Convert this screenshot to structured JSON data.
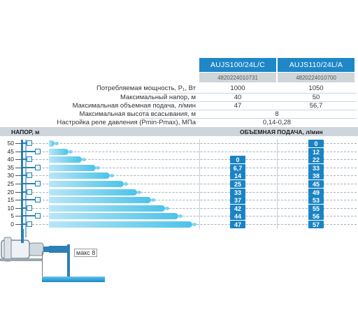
{
  "models": [
    {
      "name": "AUJS100/24L/C",
      "code": "4820224010731"
    },
    {
      "name": "AUJS110/24L/A",
      "code": "4820224010700"
    }
  ],
  "specs": [
    {
      "label": "Потребляемая мощность, P₁, Вт",
      "v1": "1000",
      "v2": "1050"
    },
    {
      "label": "Максимальный напор, м",
      "v1": "40",
      "v2": "50"
    },
    {
      "label": "Максимальная объемная подача, л/мин",
      "v1": "47",
      "v2": "56,7"
    },
    {
      "label": "Максимальная высота всасывания, м",
      "merged": "8"
    },
    {
      "label": "Настройка реле давления (Pmin-Pmax), МПа",
      "merged": "0,14-0,28"
    }
  ],
  "chart_header": {
    "head_label": "НАПОР,  м",
    "flow_label": "ОБЪЕМНАЯ ПОДАЧА,  л/мин"
  },
  "chart_data": {
    "type": "table",
    "columns": [
      "НАПОР, м",
      "AUJS100/24L/C",
      "AUJS110/24L/A"
    ],
    "rows": [
      {
        "head": "50",
        "m1": "",
        "m2": "0"
      },
      {
        "head": "45",
        "m1": "",
        "m2": "12"
      },
      {
        "head": "40",
        "m1": "0",
        "m2": "22"
      },
      {
        "head": "35",
        "m1": "6,7",
        "m2": "33"
      },
      {
        "head": "30",
        "m1": "14",
        "m2": "38"
      },
      {
        "head": "25",
        "m1": "25",
        "m2": "45"
      },
      {
        "head": "20",
        "m1": "33",
        "m2": "49"
      },
      {
        "head": "15",
        "m1": "37",
        "m2": "53"
      },
      {
        "head": "10",
        "m1": "42",
        "m2": "55"
      },
      {
        "head": "5",
        "m1": "44",
        "m2": "56"
      },
      {
        "head": "0",
        "m1": "47",
        "m2": "57"
      }
    ]
  },
  "suction_label": "макс 8",
  "colors": {
    "accent": "#1f87c8",
    "badge": "#1a83c4",
    "water": "#4ec3ea",
    "band": "#cdd6dc"
  }
}
